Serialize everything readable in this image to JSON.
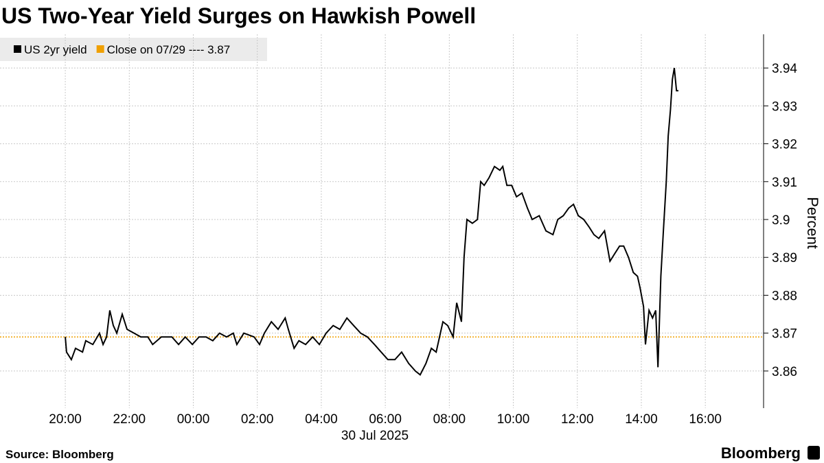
{
  "chart_data": {
    "type": "line",
    "title": "US Two-Year Yield Surges on Hawkish Powell",
    "y_axis_label": "Percent",
    "date_label": "30 Jul 2025",
    "source": "Source: Bloomberg",
    "brand": "Bloomberg",
    "grid": true,
    "legend": "top-left",
    "xlim": [
      -6.04,
      17.82
    ],
    "xticks": [
      {
        "value": -4,
        "label": "20:00"
      },
      {
        "value": -2,
        "label": "22:00"
      },
      {
        "value": 0,
        "label": "00:00"
      },
      {
        "value": 2,
        "label": "02:00"
      },
      {
        "value": 4,
        "label": "04:00"
      },
      {
        "value": 6,
        "label": "06:00"
      },
      {
        "value": 8,
        "label": "08:00"
      },
      {
        "value": 10,
        "label": "10:00"
      },
      {
        "value": 12,
        "label": "12:00"
      },
      {
        "value": 14,
        "label": "14:00"
      },
      {
        "value": 16,
        "label": "16:00"
      }
    ],
    "ylim": [
      3.8502,
      3.9489
    ],
    "yticks": [
      3.86,
      3.87,
      3.88,
      3.89,
      3.9,
      3.91,
      3.92,
      3.93,
      3.94
    ],
    "reference_line": {
      "name": "Close on 07/29 ---- 3.87",
      "value": 3.869,
      "color": "#f0a000"
    },
    "series": [
      {
        "name": "US 2yr yield",
        "color": "#000000",
        "x": [
          -4.0,
          -3.96,
          -3.81,
          -3.68,
          -3.46,
          -3.36,
          -3.14,
          -2.93,
          -2.82,
          -2.71,
          -2.61,
          -2.5,
          -2.39,
          -2.22,
          -2.07,
          -1.85,
          -1.64,
          -1.42,
          -1.27,
          -1.0,
          -0.67,
          -0.46,
          -0.25,
          -0.03,
          0.18,
          0.4,
          0.61,
          0.82,
          1.04,
          1.25,
          1.36,
          1.58,
          1.9,
          2.07,
          2.22,
          2.44,
          2.65,
          2.87,
          2.97,
          3.15,
          3.3,
          3.51,
          3.73,
          3.94,
          4.15,
          4.37,
          4.58,
          4.8,
          5.01,
          5.23,
          5.44,
          5.66,
          5.87,
          6.08,
          6.3,
          6.51,
          6.73,
          6.94,
          7.09,
          7.27,
          7.44,
          7.59,
          7.8,
          7.95,
          8.12,
          8.23,
          8.38,
          8.46,
          8.55,
          8.72,
          8.88,
          8.98,
          9.09,
          9.24,
          9.41,
          9.58,
          9.67,
          9.8,
          9.95,
          10.1,
          10.27,
          10.44,
          10.59,
          10.81,
          11.02,
          11.24,
          11.39,
          11.56,
          11.73,
          11.88,
          12.03,
          12.2,
          12.37,
          12.52,
          12.67,
          12.85,
          13.02,
          13.17,
          13.32,
          13.45,
          13.6,
          13.75,
          13.88,
          13.96,
          14.07,
          14.13,
          14.24,
          14.35,
          14.45,
          14.52,
          14.61,
          14.69,
          14.78,
          14.84,
          14.91,
          14.97,
          15.03,
          15.1,
          15.16
        ],
        "values": [
          3.869,
          3.865,
          3.863,
          3.866,
          3.865,
          3.868,
          3.867,
          3.87,
          3.867,
          3.869,
          3.876,
          3.872,
          3.87,
          3.875,
          3.871,
          3.87,
          3.869,
          3.869,
          3.867,
          3.869,
          3.869,
          3.867,
          3.869,
          3.867,
          3.869,
          3.869,
          3.868,
          3.87,
          3.869,
          3.87,
          3.867,
          3.87,
          3.869,
          3.867,
          3.87,
          3.873,
          3.871,
          3.874,
          3.871,
          3.866,
          3.868,
          3.867,
          3.869,
          3.867,
          3.87,
          3.872,
          3.871,
          3.874,
          3.872,
          3.87,
          3.869,
          3.867,
          3.865,
          3.863,
          3.863,
          3.865,
          3.862,
          3.86,
          3.859,
          3.862,
          3.866,
          3.865,
          3.873,
          3.872,
          3.869,
          3.878,
          3.873,
          3.89,
          3.9,
          3.899,
          3.9,
          3.91,
          3.909,
          3.911,
          3.914,
          3.913,
          3.914,
          3.909,
          3.909,
          3.906,
          3.907,
          3.903,
          3.9,
          3.901,
          3.897,
          3.896,
          3.9,
          3.901,
          3.903,
          3.904,
          3.901,
          3.9,
          3.898,
          3.896,
          3.895,
          3.897,
          3.889,
          3.891,
          3.893,
          3.893,
          3.89,
          3.886,
          3.885,
          3.882,
          3.877,
          3.867,
          3.876,
          3.874,
          3.876,
          3.861,
          3.885,
          3.897,
          3.91,
          3.922,
          3.929,
          3.937,
          3.94,
          3.934,
          3.934
        ]
      }
    ]
  }
}
